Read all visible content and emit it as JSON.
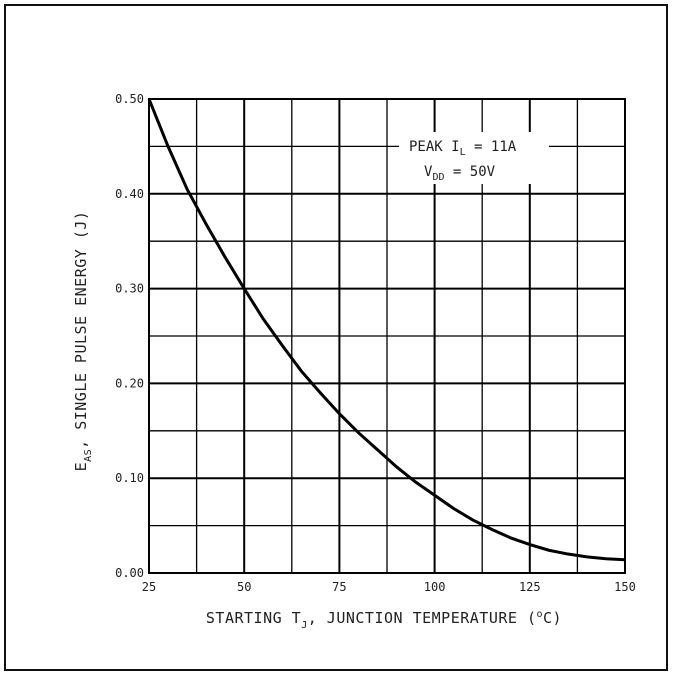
{
  "chart_data": {
    "type": "line",
    "title": "",
    "xlabel": {
      "text_main": "STARTING T",
      "text_sub": "J",
      "text_rest": ", JUNCTION TEMPERATURE  (",
      "text_sup": "o",
      "text_end": "C)"
    },
    "ylabel": {
      "text_main": "E",
      "text_sub": "AS",
      "text_rest": ", SINGLE PULSE ENERGY  (J)"
    },
    "xlim": [
      25,
      150
    ],
    "ylim": [
      0,
      0.5
    ],
    "x_ticks": [
      "25",
      "50",
      "75",
      "100",
      "125",
      "150"
    ],
    "y_ticks": [
      "0.00",
      "0.10",
      "0.20",
      "0.30",
      "0.40",
      "0.50"
    ],
    "grid": true,
    "annotation": {
      "line1_main": "PEAK I",
      "line1_sub": "L",
      "line1_rest": " = 11A",
      "line2_main": "V",
      "line2_sub": "DD",
      "line2_rest": " = 50V"
    },
    "series": [
      {
        "x": [
          25,
          30,
          35,
          40,
          45,
          50,
          55,
          60,
          65,
          70,
          75,
          80,
          85,
          90,
          95,
          100,
          105,
          110,
          115,
          120,
          125,
          130,
          135,
          140,
          145,
          150
        ],
        "y": [
          0.5,
          0.45,
          0.405,
          0.368,
          0.333,
          0.3,
          0.268,
          0.24,
          0.213,
          0.19,
          0.168,
          0.148,
          0.13,
          0.112,
          0.096,
          0.082,
          0.068,
          0.056,
          0.046,
          0.037,
          0.03,
          0.024,
          0.02,
          0.017,
          0.015,
          0.014
        ]
      }
    ]
  }
}
